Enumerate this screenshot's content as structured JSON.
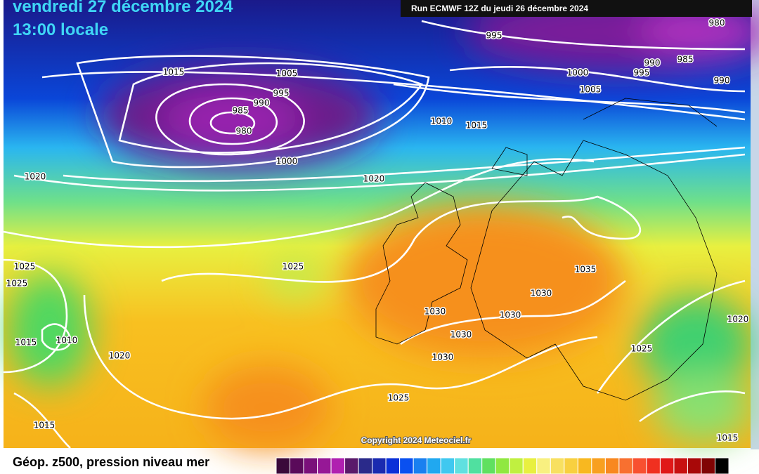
{
  "header": {
    "date": "vendredi 27 décembre 2024",
    "time": "13:00 locale",
    "run": "Run ECMWF 12Z du jeudi 26 décembre 2024"
  },
  "isobar_labels": [
    "1015",
    "1005",
    "995",
    "990",
    "985",
    "980",
    "1000",
    "1010",
    "1015",
    "1020",
    "1020",
    "995",
    "980",
    "985",
    "990",
    "995",
    "1000",
    "1005",
    "990",
    "1025",
    "1025",
    "1025",
    "1015",
    "1010",
    "1020",
    "1035",
    "1030",
    "1030",
    "1030",
    "1030",
    "1030",
    "1025",
    "1020",
    "1025",
    "1015",
    "1015"
  ],
  "copyright": "Copyright 2024 Meteociel.fr",
  "legend": {
    "title": "Géop. z500, pression niveau mer"
  }
}
